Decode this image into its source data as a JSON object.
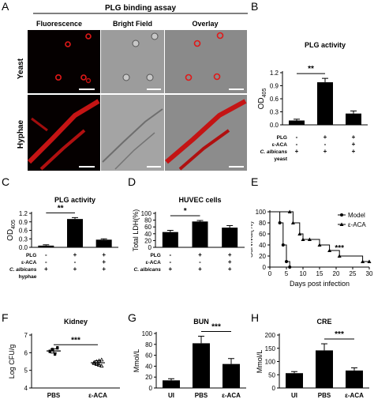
{
  "panels": {
    "A": {
      "letter": "A",
      "title": "PLG binding assay",
      "columns": [
        "Fluorescence",
        "Bright Field",
        "Overlay"
      ],
      "rows": [
        "Yeast",
        "Hyphae"
      ]
    },
    "B": {
      "letter": "B"
    },
    "C": {
      "letter": "C"
    },
    "D": {
      "letter": "D"
    },
    "E": {
      "letter": "E"
    },
    "F": {
      "letter": "F"
    },
    "G": {
      "letter": "G"
    },
    "H": {
      "letter": "H"
    }
  },
  "chart_data": [
    {
      "id": "B",
      "type": "bar",
      "title": "PLG activity",
      "ylabel": "OD405",
      "ylim": [
        0,
        1.2
      ],
      "yticks": [
        "0.0",
        "0.3",
        "0.6",
        "0.9",
        "1.2"
      ],
      "values": [
        0.1,
        0.98,
        0.26
      ],
      "errors": [
        0.03,
        0.09,
        0.06
      ],
      "fills": [
        "#000000",
        "#000000",
        "#000000"
      ],
      "significance": [
        {
          "label": "**",
          "from": 0,
          "to": 1
        }
      ],
      "conditions": [
        {
          "name": "PLG",
          "marks": [
            "-",
            "+",
            "+"
          ]
        },
        {
          "name": "ε-ACA",
          "marks": [
            "-",
            "-",
            "+"
          ]
        },
        {
          "name": "C. albicans",
          "marks": [
            "+",
            "+",
            "+"
          ]
        }
      ],
      "cond_footer": "yeast"
    },
    {
      "id": "C",
      "type": "bar",
      "title": "PLG activity",
      "ylabel": "OD405",
      "ylim": [
        0,
        1.2
      ],
      "yticks": [
        "0.0",
        "0.3",
        "0.6",
        "0.9",
        "1.2"
      ],
      "values": [
        0.06,
        1.0,
        0.27
      ],
      "errors": [
        0.03,
        0.05,
        0.03
      ],
      "fills": [
        "#000000",
        "#000000",
        "#000000"
      ],
      "significance": [
        {
          "label": "**",
          "from": 0,
          "to": 1
        }
      ],
      "conditions": [
        {
          "name": "PLG",
          "marks": [
            "-",
            "+",
            "+"
          ]
        },
        {
          "name": "ε-ACA",
          "marks": [
            "-",
            "-",
            "+"
          ]
        },
        {
          "name": "C. albicans",
          "marks": [
            "+",
            "+",
            "+"
          ]
        }
      ],
      "cond_footer": "hyphae"
    },
    {
      "id": "D",
      "type": "bar",
      "title": "HUVEC cells",
      "ylabel": "Total LDH(%)",
      "ylim": [
        0,
        100
      ],
      "yticks": [
        "0",
        "20",
        "40",
        "60",
        "80",
        "100"
      ],
      "values": [
        45,
        76,
        58
      ],
      "errors": [
        5,
        3,
        6
      ],
      "fills": [
        "#000000",
        "#000000",
        "#000000"
      ],
      "significance": [
        {
          "label": "*",
          "from": 0,
          "to": 1
        }
      ],
      "conditions": [
        {
          "name": "PLG",
          "marks": [
            "-",
            "+",
            "+"
          ]
        },
        {
          "name": "ε-ACA",
          "marks": [
            "-",
            "-",
            "+"
          ]
        },
        {
          "name": "C. albicans",
          "marks": [
            "+",
            "+",
            "+"
          ]
        }
      ],
      "cond_footer": ""
    },
    {
      "id": "E",
      "type": "line",
      "ylabel": "Survival(%)",
      "xlabel": "Days post infection",
      "xlim": [
        0,
        30
      ],
      "ylim": [
        0,
        100
      ],
      "xticks": [
        "0",
        "5",
        "10",
        "15",
        "20",
        "25",
        "30"
      ],
      "yticks": [
        "0",
        "20",
        "40",
        "60",
        "80",
        "100"
      ],
      "series": [
        {
          "name": "Model",
          "marker": "circle",
          "x": [
            0,
            3,
            4,
            5,
            6
          ],
          "y": [
            100,
            80,
            40,
            10,
            0
          ]
        },
        {
          "name": "ε-ACA",
          "marker": "triangle",
          "x": [
            0,
            6,
            7,
            9,
            10,
            12,
            15,
            18,
            21,
            28,
            30
          ],
          "y": [
            100,
            100,
            80,
            60,
            50,
            50,
            40,
            30,
            20,
            10,
            10
          ]
        }
      ],
      "significance": [
        {
          "label": "***"
        }
      ]
    },
    {
      "id": "F",
      "type": "scatter",
      "title": "Kidney",
      "ylabel": "Log CFU/g",
      "ylim": [
        4,
        7
      ],
      "yticks": [
        "4",
        "5",
        "6",
        "7"
      ],
      "categories": [
        "PBS",
        "ε-ACA"
      ],
      "points": [
        [
          6.1,
          6.2,
          5.95,
          6.3,
          6.05,
          6.15,
          5.9,
          6.25
        ],
        [
          5.4,
          5.5,
          5.3,
          5.6,
          5.45,
          5.35,
          5.55,
          5.25
        ]
      ],
      "means": [
        6.1,
        5.43
      ],
      "errors": [
        0.12,
        0.12
      ],
      "significance": [
        {
          "label": "***",
          "from": 0,
          "to": 1
        }
      ]
    },
    {
      "id": "G",
      "type": "bar",
      "title": "BUN",
      "ylabel": "Mmol/L",
      "ylim": [
        0,
        100
      ],
      "yticks": [
        "0",
        "20",
        "40",
        "60",
        "80",
        "100"
      ],
      "categories": [
        "UI",
        "PBS",
        "ε-ACA"
      ],
      "values": [
        14,
        82,
        44
      ],
      "errors": [
        3,
        13,
        10
      ],
      "fills": [
        "#000000",
        "#000000",
        "#000000"
      ],
      "significance": [
        {
          "label": "***",
          "from": 1,
          "to": 2
        }
      ]
    },
    {
      "id": "H",
      "type": "bar",
      "title": "CRE",
      "ylabel": "Mmol/L",
      "ylim": [
        0,
        200
      ],
      "yticks": [
        "0",
        "50",
        "100",
        "150",
        "200"
      ],
      "categories": [
        "UI",
        "PBS",
        "ε-ACA"
      ],
      "values": [
        56,
        142,
        66
      ],
      "errors": [
        6,
        25,
        10
      ],
      "fills": [
        "#000000",
        "#000000",
        "#000000"
      ],
      "significance": [
        {
          "label": "***",
          "from": 1,
          "to": 2
        }
      ]
    }
  ]
}
